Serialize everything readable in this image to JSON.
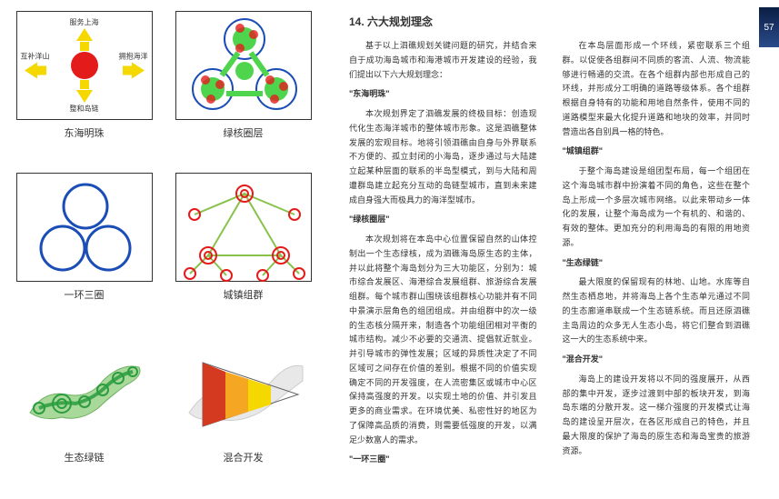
{
  "page_number": "57",
  "colors": {
    "red": "#e41b1b",
    "green": "#4fd44e",
    "blue": "#1b4db6",
    "yellow": "#f5d800",
    "orange": "#f5a623",
    "red2": "#d43a1f",
    "link": "#88c24b"
  },
  "cards": [
    {
      "label": "东海明珠",
      "arrows": {
        "up": "服务上海",
        "down": "整和岛链",
        "left": "互补洋山",
        "right": "拥抱海洋"
      }
    },
    {
      "label": "绿核圈层"
    },
    {
      "label": "一环三圈"
    },
    {
      "label": "城镇组群"
    },
    {
      "label": "生态绿链"
    },
    {
      "label": "混合开发"
    }
  ],
  "heading": "14. 六大规划理念",
  "intro": "基于以上泗礁规划关键问题的研究，并结合来自于成功海岛城市和海港城市开发建设的经验，我们提出以下六大规划理念：",
  "sections": [
    {
      "title": "\"东海明珠\"",
      "body": "本次规划界定了泗礁发展的终极目标：创造现代化生态海洋城市的整体城市形象。这是泗礁整体发展的宏观目标。地将引领泗礁由自身与外界联系不方便的、孤立封闭的小海岛，逐步通过与大陆建立起某种层面的联系的半岛型模式，到与大陆和周遭群岛建立起充分互动的岛链型城市，直到未来建成自身强大而极具力的海洋型城市。"
    },
    {
      "title": "\"绿核圈层\"",
      "body": "本次规划将在本岛中心位置保留自然的山体控制出一个生态绿核，成为泗礁海岛原生态的主体，并以此将整个海岛划分为三大功能区，分别为：城市综合发展区、海港综合发展组群、旅游综合发展组群。每个城市群山围绕该组群核心功能并有不同中景演示层角色的组团组成。并由组群中的次一级的生态核分隔开来，制造各个功能组团相对平衡的城市结构。减少不必要的交通流、提倡就近就业。并引导城市的弹性发展；区域的异质性决定了不同区域可之间存在价值的差别。根据不同的价值实现确定不同的开发强度，在人流密集区或城市中心区保持高强度的开发。以实现土地的价值、并引发且更多的商业需求。在环境优美、私密性好的地区为了保障高品质的消费，则需要低强度的开发，以满足少数富人的需求。"
    },
    {
      "title": "\"一环三圈\"",
      "body": "在本岛层面形成一个环线，紧密联系三个组群。以促使各组群间不同质的客流、人流、物流能够进行畅通的交流。在各个组群内部也形成自己的环线，并形成分工明确的道路等级体系。各个组群根据自身特有的功能和用地自然条件，使用不同的道路模型来最大化提升道路和地块的效率，并同时营造出各自别具一格的特色。"
    },
    {
      "title": "\"城镇组群\"",
      "body": "于整个海岛建设是组团型布局，每一个组团在这个海岛城市群中扮演着不同的角色，这些在整个岛上形成一个多层次城市网络。以此来带动乡一体化的发展，让整个海岛成为一个有机的、和谐的、有效的整体。更加充分的利用海岛的有限的用地资源。"
    },
    {
      "title": "\"生态绿链\"",
      "body": "最大限度的保留现有的林地、山地。水库等自然生态栖息地，并将海岛上各个生态单元通过不同的生态廊道串联成一个生态链系统。而且还原泗礁主岛周边的众多无人生态小岛，将它们整合到泗礁这一大的生态系统中来。"
    },
    {
      "title": "\"混合开发\"",
      "body": "海岛上的建设开发将以不同的强度展开，从西部的集中开发，逐步过渡到中部的板块开发，到海岛东端的分散开发。这一梯介强度的开发模式让海岛的建设呈开层次，在各区形成自己的特色，并且最大限度的保护了海岛的原生态和海岛宝贵的旅游资源。"
    }
  ]
}
